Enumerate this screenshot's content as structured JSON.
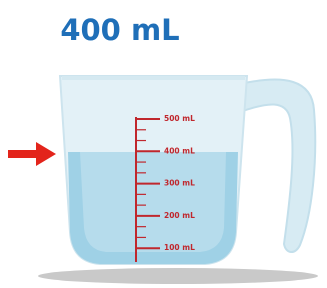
{
  "title": "400 mL",
  "scale": {
    "labels": [
      "500 mL",
      "400 mL",
      "300 mL",
      "200 mL",
      "100 mL"
    ]
  }
}
